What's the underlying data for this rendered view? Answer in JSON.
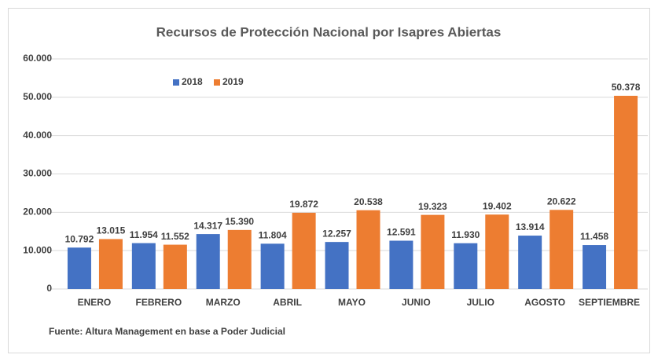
{
  "chart_data": {
    "type": "bar",
    "title": "Recursos de Protección Nacional por Isapres Abiertas",
    "categories": [
      "ENERO",
      "FEBRERO",
      "MARZO",
      "ABRIL",
      "MAYO",
      "JUNIO",
      "JULIO",
      "AGOSTO",
      "SEPTIEMBRE"
    ],
    "series": [
      {
        "name": "2018",
        "color": "#4472c4",
        "values": [
          10792,
          11954,
          14317,
          11804,
          12257,
          12591,
          11930,
          13914,
          11458
        ],
        "value_labels": [
          "10.792",
          "11.954",
          "14.317",
          "11.804",
          "12.257",
          "12.591",
          "11.930",
          "13.914",
          "11.458"
        ]
      },
      {
        "name": "2019",
        "color": "#ed7d31",
        "values": [
          13015,
          11552,
          15390,
          19872,
          20538,
          19323,
          19402,
          20622,
          50378
        ],
        "value_labels": [
          "13.015",
          "11.552",
          "15.390",
          "19.872",
          "20.538",
          "19.323",
          "19.402",
          "20.622",
          "50.378"
        ]
      }
    ],
    "ylim": [
      0,
      60000
    ],
    "yticks": [
      0,
      {
        "value": 10000,
        "label": "10.000"
      },
      {
        "value": 20000,
        "label": "20.000"
      },
      {
        "value": 30000,
        "label": "30.000"
      },
      {
        "value": 40000,
        "label": "40.000"
      },
      {
        "value": 50000,
        "label": "50.000"
      },
      {
        "value": 60000,
        "label": "60.000"
      }
    ],
    "grid": true,
    "legend": "top-left",
    "source": "Fuente: Altura Management en base a Poder Judicial"
  }
}
